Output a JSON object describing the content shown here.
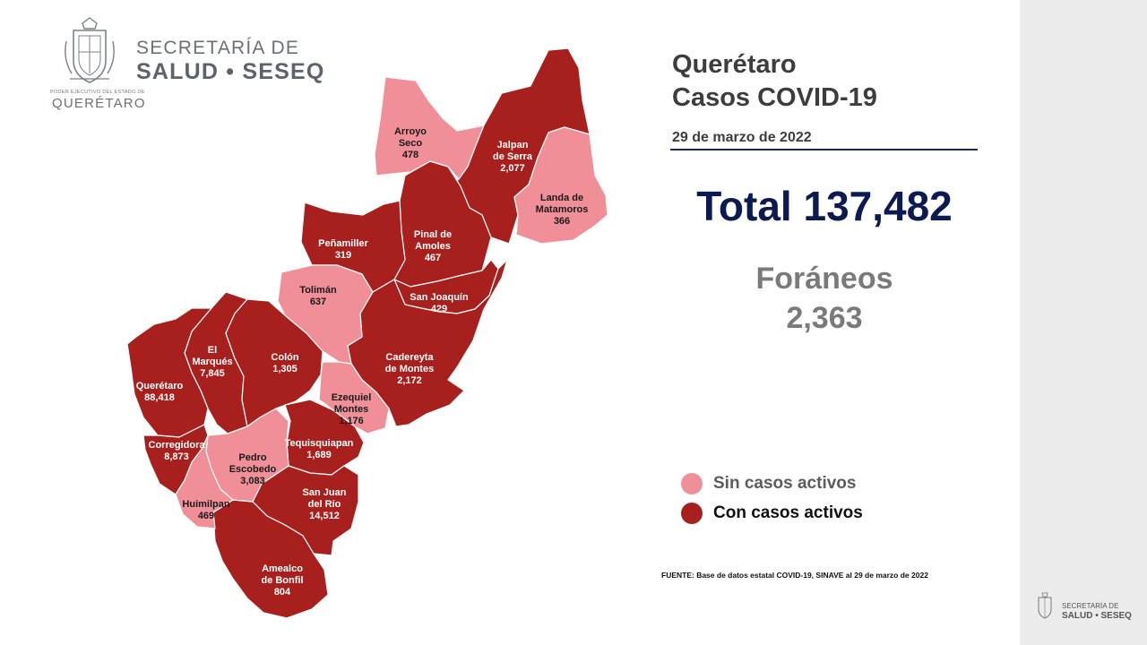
{
  "header": {
    "org_line1": "SECRETARÍA DE",
    "org_line2": "SALUD • SESEQ",
    "seal_caption": "PODER EJECUTIVO DEL ESTADO DE",
    "seal_state": "QUERÉTARO"
  },
  "summary": {
    "title_line1": "Querétaro",
    "title_line2": "Casos COVID-19",
    "date": "29 de marzo de 2022",
    "total": "Total 137,482",
    "foraneos_label": "Foráneos",
    "foraneos_value": "2,363"
  },
  "legend": {
    "inactive_label": "Sin casos activos",
    "active_label": "Con casos activos",
    "inactive_color": "#f08f98",
    "active_color": "#a8201d"
  },
  "source": "FUENTE: Base de datos estatal  COVID-19,  SINAVE  al 29 de marzo de 2022",
  "mini_logo": {
    "line1": "SECRETARÍA DE",
    "line2": "SALUD • SESEQ"
  },
  "map": {
    "municipalities": [
      {
        "name_line1": "Arroyo",
        "name_line2": "Seco",
        "cases": "478",
        "status": "sin"
      },
      {
        "name_line1": "Jalpan",
        "name_line2": "de Serra",
        "cases": "2,077",
        "status": "con"
      },
      {
        "name_line1": "Landa de",
        "name_line2": "Matamoros",
        "cases": "366",
        "status": "sin"
      },
      {
        "name_line1": "Pinal de",
        "name_line2": "Amoles",
        "cases": "467",
        "status": "con"
      },
      {
        "name_line1": "Peñamiller",
        "name_line2": "",
        "cases": "319",
        "status": "con"
      },
      {
        "name_line1": "San Joaquín",
        "name_line2": "",
        "cases": "429",
        "status": "con"
      },
      {
        "name_line1": "Tolimán",
        "name_line2": "",
        "cases": "637",
        "status": "sin"
      },
      {
        "name_line1": "Cadereyta",
        "name_line2": "de Montes",
        "cases": "2,172",
        "status": "con"
      },
      {
        "name_line1": "El",
        "name_line2": "Marqués",
        "cases": "7,845",
        "status": "con"
      },
      {
        "name_line1": "Colón",
        "name_line2": "",
        "cases": "1,305",
        "status": "con"
      },
      {
        "name_line1": "Querétaro",
        "name_line2": "",
        "cases": "88,418",
        "status": "con"
      },
      {
        "name_line1": "Ezequiel",
        "name_line2": "Montes",
        "cases": "1,176",
        "status": "sin"
      },
      {
        "name_line1": "Corregidora",
        "name_line2": "",
        "cases": "8,873",
        "status": "con"
      },
      {
        "name_line1": "Pedro",
        "name_line2": "Escobedo",
        "cases": "3,083",
        "status": "sin"
      },
      {
        "name_line1": "Tequisquiapan",
        "name_line2": "",
        "cases": "1,689",
        "status": "con"
      },
      {
        "name_line1": "San Juan",
        "name_line2": "del Río",
        "cases": "14,512",
        "status": "con"
      },
      {
        "name_line1": "Huimilpan",
        "name_line2": "",
        "cases": "469",
        "status": "sin"
      },
      {
        "name_line1": "Amealco",
        "name_line2": "de Bonfil",
        "cases": "804",
        "status": "con"
      }
    ]
  }
}
